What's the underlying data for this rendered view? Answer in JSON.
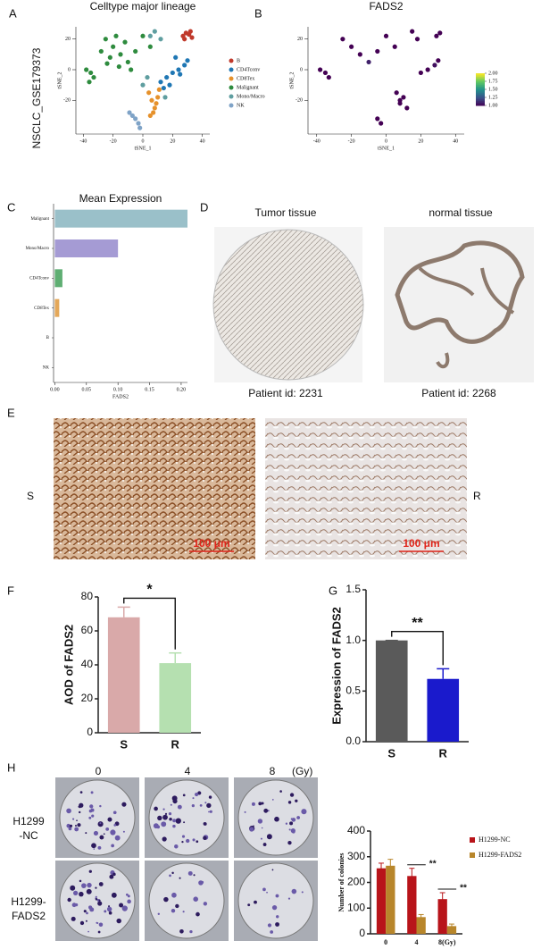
{
  "panel_letters": [
    "A",
    "B",
    "C",
    "D",
    "E",
    "F",
    "G",
    "H"
  ],
  "dataset_label": "NSCLC_GSE179373",
  "panel_d": {
    "headers": [
      "Tumor  tissue",
      "normal tissue"
    ],
    "captions": [
      "Patient id: 2231",
      "Patient id: 2268"
    ]
  },
  "panel_e": {
    "scale_bar": "100 μm",
    "side_labels": [
      "S",
      "R"
    ]
  },
  "panel_h": {
    "doses": [
      "0",
      "4",
      "8"
    ],
    "dose_unit": "(Gy)",
    "row_labels": [
      [
        "H1299",
        "-NC"
      ],
      [
        "H1299-",
        "FADS2"
      ]
    ]
  },
  "chart_data": [
    {
      "type": "scatter",
      "title": "Celltype major lineage",
      "x_label": "tSNE_1",
      "y_label": "tSNE_2",
      "xlim": [
        -45,
        45
      ],
      "ylim": [
        -42,
        28
      ],
      "xticks": [
        -40,
        -20,
        0,
        20,
        40
      ],
      "yticks": [
        -20,
        0,
        20
      ],
      "legend": "right",
      "series": [
        {
          "name": "B",
          "color": "#c0392b",
          "x": [
            27,
            29,
            31,
            33,
            28,
            32
          ],
          "y": [
            22,
            24,
            23,
            21,
            20,
            25
          ]
        },
        {
          "name": "CD4Tconv",
          "color": "#1f77b4",
          "x": [
            12,
            16,
            20,
            24,
            28,
            30,
            18,
            25,
            22,
            14
          ],
          "y": [
            -8,
            -5,
            -2,
            0,
            3,
            6,
            -10,
            -3,
            8,
            -12
          ]
        },
        {
          "name": "CD8Tex",
          "color": "#e6912b",
          "x": [
            4,
            6,
            8,
            10,
            7,
            9,
            5,
            11
          ],
          "y": [
            -15,
            -20,
            -25,
            -18,
            -28,
            -22,
            -30,
            -13
          ]
        },
        {
          "name": "Malignant",
          "color": "#2e8b3e",
          "x": [
            -25,
            -20,
            -15,
            -10,
            -5,
            -22,
            -18,
            -12,
            -8,
            -28,
            -35,
            -38,
            -33,
            -36,
            0,
            5,
            -16,
            -24
          ],
          "y": [
            20,
            15,
            10,
            5,
            12,
            8,
            22,
            18,
            0,
            12,
            -2,
            0,
            -5,
            -8,
            22,
            15,
            2,
            4
          ]
        },
        {
          "name": "Mono/Macro",
          "color": "#5f9ea0",
          "x": [
            5,
            8,
            12,
            0,
            3,
            15
          ],
          "y": [
            22,
            25,
            20,
            -10,
            -5,
            -18
          ]
        },
        {
          "name": "NK",
          "color": "#7fa3c7",
          "x": [
            -5,
            -3,
            -7,
            -2,
            -9
          ],
          "y": [
            -32,
            -35,
            -30,
            -38,
            -28
          ]
        }
      ]
    },
    {
      "type": "scatter",
      "title": "FADS2",
      "x_label": "tSNE_1",
      "y_label": "tSNE_2",
      "xlim": [
        -45,
        45
      ],
      "ylim": [
        -42,
        28
      ],
      "xticks": [
        -40,
        -20,
        0,
        20,
        40
      ],
      "yticks": [
        -20,
        0,
        20
      ],
      "clim": [
        1,
        2
      ],
      "colorscale": [
        "#440154",
        "#3b528b",
        "#21918c",
        "#5ec962",
        "#fde725"
      ],
      "colorbar_ticks": [
        {
          "value": 1,
          "label": "1.00"
        },
        {
          "value": 1.25,
          "label": "1.25"
        },
        {
          "value": 1.5,
          "label": "1.50"
        },
        {
          "value": 1.75,
          "label": "1.75"
        },
        {
          "value": 2,
          "label": "2.00"
        }
      ],
      "series": [
        {
          "name": "FADS2",
          "x": [
            -25,
            -20,
            -15,
            -10,
            -5,
            -35,
            -38,
            -33,
            0,
            5,
            8,
            12,
            20,
            24,
            28,
            30,
            6,
            8,
            10,
            -5,
            -3,
            29,
            31,
            15,
            18
          ],
          "y": [
            20,
            15,
            10,
            5,
            12,
            -2,
            0,
            -5,
            22,
            15,
            -20,
            -25,
            -2,
            0,
            3,
            6,
            -15,
            -22,
            -18,
            -32,
            -35,
            22,
            24,
            25,
            20
          ],
          "values": [
            1,
            1,
            1,
            1.1,
            1,
            1,
            1,
            1,
            1,
            1,
            1,
            1,
            1,
            1,
            1.05,
            1,
            1,
            1,
            1,
            1,
            1,
            1,
            1,
            1,
            1
          ]
        }
      ]
    },
    {
      "type": "bar",
      "orientation": "horizontal",
      "title": "Mean Expression",
      "x_label": "FADS2",
      "categories": [
        "Malignant",
        "Mono/Macro",
        "CD4Tconv",
        "CD8Tex",
        "B",
        "NK"
      ],
      "values": [
        0.21,
        0.1,
        0.012,
        0.007,
        0,
        0
      ],
      "colors": [
        "#9ac0c9",
        "#a59bd4",
        "#5fae73",
        "#e4a85a",
        "#7fa3c7",
        "#c0392b"
      ],
      "xlim": [
        -0.002,
        0.21
      ],
      "xticks": [
        {
          "value": 0,
          "label": "0.00"
        },
        {
          "value": 0.05,
          "label": "0.05"
        },
        {
          "value": 0.1,
          "label": "0.10"
        },
        {
          "value": 0.15,
          "label": "0.15"
        },
        {
          "value": 0.2,
          "label": "0.20"
        }
      ]
    },
    {
      "type": "bar",
      "y_label": "AOD of FADS2",
      "categories": [
        "S",
        "R"
      ],
      "values": [
        68,
        41
      ],
      "errors": [
        6,
        6
      ],
      "colors": [
        "#d9a9a9",
        "#b5e0b0"
      ],
      "ylim": [
        0,
        80
      ],
      "yticks": [
        0,
        20,
        40,
        60,
        80
      ],
      "significance": "*"
    },
    {
      "type": "bar",
      "y_label": "Expression of FADS2",
      "categories": [
        "S",
        "R"
      ],
      "values": [
        1,
        0.62
      ],
      "errors": [
        0,
        0.1
      ],
      "colors": [
        "#5a5a5a",
        "#1a1acc"
      ],
      "ylim": [
        0,
        1.5
      ],
      "yticks": [
        {
          "value": 0,
          "label": "0.0"
        },
        {
          "value": 0.5,
          "label": "0.5"
        },
        {
          "value": 1,
          "label": "1.0"
        },
        {
          "value": 1.5,
          "label": "1.5"
        }
      ],
      "significance": "**"
    },
    {
      "type": "groupedbar",
      "y_label": "Number of colonies",
      "categories": [
        "0",
        "4",
        "8(Gy)"
      ],
      "ylim": [
        0,
        400
      ],
      "yticks": [
        0,
        100,
        200,
        300,
        400
      ],
      "legend": "right",
      "significance": [
        null,
        "**",
        "**"
      ],
      "series": [
        {
          "name": "H1299-NC",
          "color": "#b8141a",
          "values": [
            255,
            225,
            135
          ],
          "errors": [
            20,
            30,
            25
          ]
        },
        {
          "name": "H1299-FADS2",
          "color": "#b8862b",
          "values": [
            265,
            65,
            30
          ],
          "errors": [
            25,
            10,
            8
          ]
        }
      ]
    }
  ]
}
